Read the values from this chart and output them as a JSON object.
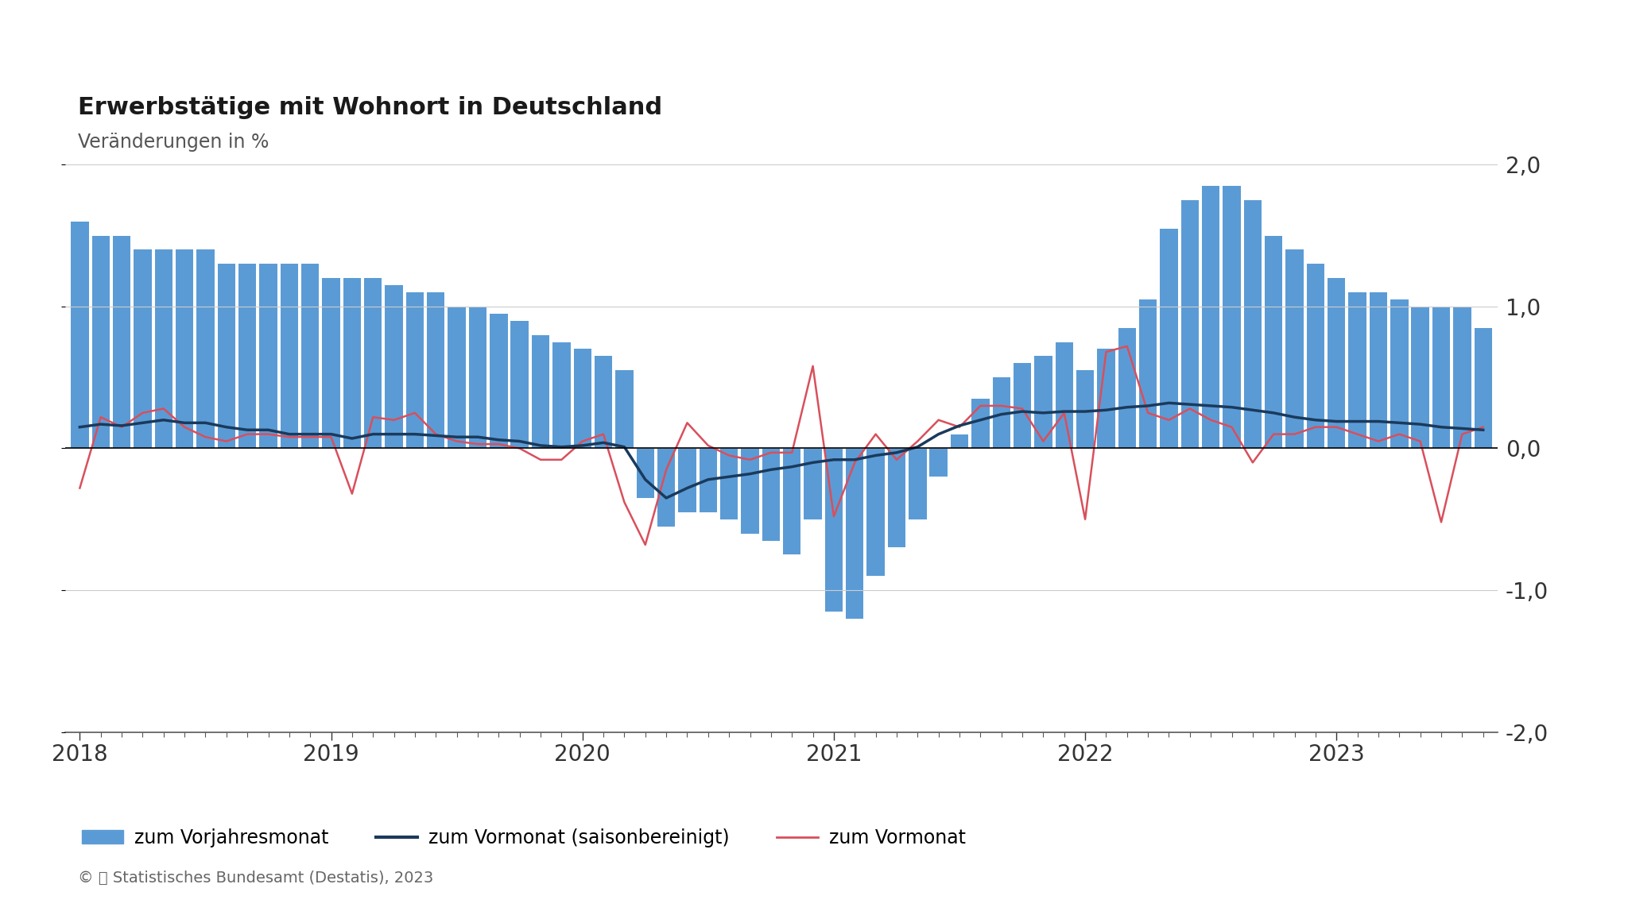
{
  "title": "Erwerbstätige mit Wohnort in Deutschland",
  "subtitle": "Veränderungen in %",
  "copyright": "© 📊 Statistisches Bundesamt (Destatis), 2023",
  "bar_color": "#5b9bd5",
  "line_seasonal_color": "#1a3a5c",
  "line_mom_color": "#d94f5c",
  "ylim": [
    -2.0,
    2.0
  ],
  "yticks": [
    -2.0,
    -1.0,
    0.0,
    1.0,
    2.0
  ],
  "ytick_labels": [
    "-2,0",
    "-1,0",
    "0,0",
    "1,0",
    "2,0"
  ],
  "bar_values": [
    1.6,
    1.5,
    1.5,
    1.4,
    1.4,
    1.4,
    1.4,
    1.3,
    1.3,
    1.3,
    1.3,
    1.3,
    1.2,
    1.2,
    1.2,
    1.15,
    1.1,
    1.1,
    1.0,
    1.0,
    0.95,
    0.9,
    0.8,
    0.75,
    0.7,
    0.65,
    0.55,
    -0.35,
    -0.55,
    -0.45,
    -0.45,
    -0.5,
    -0.6,
    -0.65,
    -0.75,
    -0.5,
    -1.15,
    -1.2,
    -0.9,
    -0.7,
    -0.5,
    -0.2,
    0.1,
    0.35,
    0.5,
    0.6,
    0.65,
    0.75,
    0.55,
    0.7,
    0.85,
    1.05,
    1.55,
    1.75,
    1.85,
    1.85,
    1.75,
    1.5,
    1.4,
    1.3,
    1.2,
    1.1,
    1.1,
    1.05,
    1.0,
    1.0,
    1.0,
    0.85
  ],
  "line_seasonal": [
    0.15,
    0.17,
    0.16,
    0.18,
    0.2,
    0.18,
    0.18,
    0.15,
    0.13,
    0.13,
    0.1,
    0.1,
    0.1,
    0.07,
    0.1,
    0.1,
    0.1,
    0.09,
    0.08,
    0.08,
    0.06,
    0.05,
    0.02,
    0.01,
    0.02,
    0.04,
    0.01,
    -0.22,
    -0.35,
    -0.28,
    -0.22,
    -0.2,
    -0.18,
    -0.15,
    -0.13,
    -0.1,
    -0.08,
    -0.08,
    -0.05,
    -0.03,
    0.01,
    0.1,
    0.16,
    0.2,
    0.24,
    0.26,
    0.25,
    0.26,
    0.26,
    0.27,
    0.29,
    0.3,
    0.32,
    0.31,
    0.3,
    0.29,
    0.27,
    0.25,
    0.22,
    0.2,
    0.19,
    0.19,
    0.19,
    0.18,
    0.17,
    0.15,
    0.14,
    0.13
  ],
  "line_mom": [
    -0.28,
    0.22,
    0.15,
    0.25,
    0.28,
    0.15,
    0.08,
    0.05,
    0.1,
    0.1,
    0.08,
    0.08,
    0.08,
    -0.32,
    0.22,
    0.2,
    0.25,
    0.1,
    0.05,
    0.03,
    0.03,
    0.0,
    -0.08,
    -0.08,
    0.05,
    0.1,
    -0.38,
    -0.68,
    -0.15,
    0.18,
    0.02,
    -0.05,
    -0.08,
    -0.03,
    -0.03,
    0.58,
    -0.48,
    -0.1,
    0.1,
    -0.08,
    0.05,
    0.2,
    0.15,
    0.3,
    0.3,
    0.28,
    0.05,
    0.25,
    -0.5,
    0.68,
    0.72,
    0.25,
    0.2,
    0.28,
    0.2,
    0.15,
    -0.1,
    0.1,
    0.1,
    0.15,
    0.15,
    0.1,
    0.05,
    0.1,
    0.05,
    -0.52,
    0.1,
    0.15
  ],
  "xtick_years": [
    "2018",
    "2019",
    "2020",
    "2021",
    "2022",
    "2023"
  ],
  "xtick_positions": [
    0,
    12,
    24,
    36,
    48,
    60
  ],
  "background_color": "#ffffff",
  "grid_color": "#cccccc",
  "legend_bar_label": "zum Vorjahresmonat",
  "legend_seasonal_label": "zum Vormonat (saisonbereinigt)",
  "legend_mom_label": "zum Vormonat"
}
